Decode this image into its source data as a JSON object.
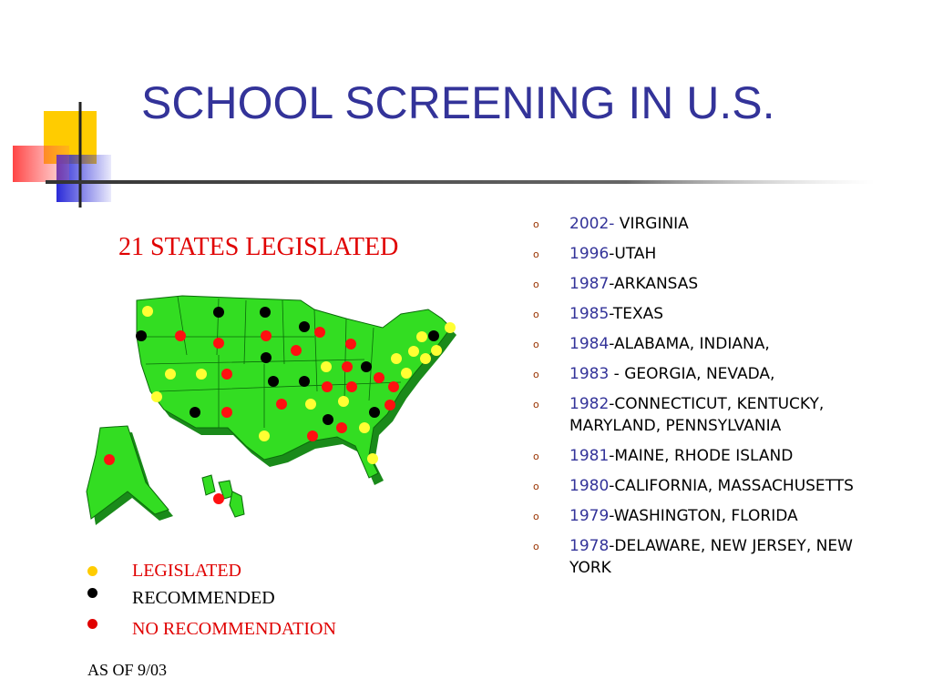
{
  "header": {
    "title": "SCHOOL SCREENING IN U.S."
  },
  "map": {
    "caption": "21 STATES LEGISLATED"
  },
  "legend": [
    "LEGISLATED",
    "RECOMMENDED",
    "NO RECOMMENDATION"
  ],
  "list": [
    {
      "year": "2002-",
      "text": " VIRGINIA"
    },
    {
      "year": "1996",
      "text": "-UTAH"
    },
    {
      "year": "1987",
      "text": "-ARKANSAS"
    },
    {
      "year": "1985",
      "text": "-TEXAS"
    },
    {
      "year": "1984",
      "text": "-ALABAMA, INDIANA,"
    },
    {
      "year": "1983",
      "text": " - GEORGIA, NEVADA,"
    },
    {
      "year": "1982",
      "text": "-CONNECTICUT, KENTUCKY, MARYLAND, PENNSYLVANIA"
    },
    {
      "year": "1981",
      "text": "-MAINE, RHODE ISLAND"
    },
    {
      "year": "1980",
      "text": "-CALIFORNIA, MASSACHUSETTS"
    },
    {
      "year": "1979",
      "text": "-WASHINGTON, FLORIDA"
    },
    {
      "year": "1978",
      "text": "-DELAWARE, NEW JERSEY, NEW YORK"
    }
  ],
  "footer": "AS OF 9/03"
}
